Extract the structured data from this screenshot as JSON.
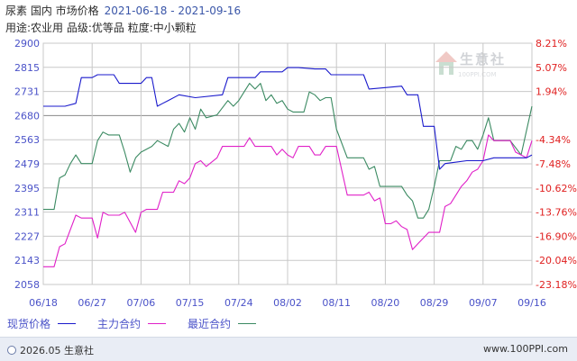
{
  "header": {
    "title": "尿素  国内  市场价格",
    "date_range": "2021-06-18 - 2021-09-16",
    "subtitle": "用途:农业用  品级:优等品  粒度:中小颗粒"
  },
  "watermark": {
    "text": "生意社",
    "url": "100PPI.COM"
  },
  "footer": {
    "copyright": "2026.05 生意社",
    "site": "www.100PPI.com"
  },
  "colors": {
    "spot": "#1a1acc",
    "main_contract": "#e020c8",
    "latest_contract": "#3b8a62",
    "axis_text": "#4a52c8",
    "right_axis_text": "#e02020",
    "grid": "#c8c8c8",
    "baseline": "#888888"
  },
  "chart_data": {
    "type": "line",
    "title": "尿素  国内  市场价格",
    "x_ticks": [
      "06/18",
      "06/27",
      "07/06",
      "07/15",
      "07/24",
      "08/02",
      "08/11",
      "08/20",
      "08/29",
      "09/07",
      "09/16"
    ],
    "x_range": [
      "2021-06-18",
      "2021-09-16"
    ],
    "y_left": {
      "ticks": [
        2900,
        2815,
        2731,
        2680,
        2563,
        2479,
        2395,
        2311,
        2227,
        2143,
        2058
      ],
      "range": [
        2058,
        2900
      ]
    },
    "y_right": {
      "ticks": [
        "8.21%",
        "5.07%",
        "1.94%",
        "",
        "-4.34%",
        "-7.48%",
        "-10.62%",
        "-13.76%",
        "-16.90%",
        "-20.04%",
        "-23.18%"
      ]
    },
    "reference_value": 2680,
    "grid": true,
    "legend_placement": "bottom-left",
    "series": [
      {
        "name": "现货价格",
        "color": "#1a1acc",
        "points": [
          [
            "2021-06-18",
            2680
          ],
          [
            "2021-06-22",
            2680
          ],
          [
            "2021-06-24",
            2690
          ],
          [
            "2021-06-25",
            2780
          ],
          [
            "2021-06-27",
            2780
          ],
          [
            "2021-06-28",
            2790
          ],
          [
            "2021-07-01",
            2790
          ],
          [
            "2021-07-02",
            2760
          ],
          [
            "2021-07-06",
            2760
          ],
          [
            "2021-07-07",
            2780
          ],
          [
            "2021-07-08",
            2780
          ],
          [
            "2021-07-09",
            2680
          ],
          [
            "2021-07-10",
            2690
          ],
          [
            "2021-07-11",
            2700
          ],
          [
            "2021-07-13",
            2720
          ],
          [
            "2021-07-16",
            2710
          ],
          [
            "2021-07-21",
            2720
          ],
          [
            "2021-07-22",
            2780
          ],
          [
            "2021-07-27",
            2780
          ],
          [
            "2021-07-28",
            2800
          ],
          [
            "2021-08-01",
            2800
          ],
          [
            "2021-08-02",
            2815
          ],
          [
            "2021-08-04",
            2815
          ],
          [
            "2021-08-07",
            2810
          ],
          [
            "2021-08-09",
            2810
          ],
          [
            "2021-08-10",
            2790
          ],
          [
            "2021-08-16",
            2790
          ],
          [
            "2021-08-17",
            2740
          ],
          [
            "2021-08-23",
            2750
          ],
          [
            "2021-08-24",
            2720
          ],
          [
            "2021-08-26",
            2720
          ],
          [
            "2021-08-27",
            2610
          ],
          [
            "2021-08-29",
            2610
          ],
          [
            "2021-08-30",
            2460
          ],
          [
            "2021-08-31",
            2480
          ],
          [
            "2021-09-04",
            2490
          ],
          [
            "2021-09-07",
            2490
          ],
          [
            "2021-09-09",
            2500
          ],
          [
            "2021-09-14",
            2500
          ],
          [
            "2021-09-15",
            2500
          ],
          [
            "2021-09-16",
            2510
          ]
        ]
      },
      {
        "name": "主力合约",
        "color": "#e020c8",
        "points": [
          [
            "2021-06-18",
            2120
          ],
          [
            "2021-06-20",
            2120
          ],
          [
            "2021-06-21",
            2190
          ],
          [
            "2021-06-22",
            2200
          ],
          [
            "2021-06-24",
            2300
          ],
          [
            "2021-06-25",
            2290
          ],
          [
            "2021-06-27",
            2290
          ],
          [
            "2021-06-28",
            2220
          ],
          [
            "2021-06-29",
            2310
          ],
          [
            "2021-06-30",
            2300
          ],
          [
            "2021-07-02",
            2300
          ],
          [
            "2021-07-03",
            2310
          ],
          [
            "2021-07-05",
            2240
          ],
          [
            "2021-07-06",
            2310
          ],
          [
            "2021-07-07",
            2320
          ],
          [
            "2021-07-09",
            2320
          ],
          [
            "2021-07-10",
            2380
          ],
          [
            "2021-07-12",
            2380
          ],
          [
            "2021-07-13",
            2420
          ],
          [
            "2021-07-14",
            2410
          ],
          [
            "2021-07-15",
            2430
          ],
          [
            "2021-07-16",
            2480
          ],
          [
            "2021-07-17",
            2490
          ],
          [
            "2021-07-18",
            2470
          ],
          [
            "2021-07-20",
            2500
          ],
          [
            "2021-07-21",
            2540
          ],
          [
            "2021-07-25",
            2540
          ],
          [
            "2021-07-26",
            2570
          ],
          [
            "2021-07-27",
            2540
          ],
          [
            "2021-07-30",
            2540
          ],
          [
            "2021-07-31",
            2510
          ],
          [
            "2021-08-01",
            2530
          ],
          [
            "2021-08-02",
            2510
          ],
          [
            "2021-08-03",
            2500
          ],
          [
            "2021-08-04",
            2540
          ],
          [
            "2021-08-06",
            2540
          ],
          [
            "2021-08-07",
            2510
          ],
          [
            "2021-08-08",
            2510
          ],
          [
            "2021-08-09",
            2540
          ],
          [
            "2021-08-11",
            2540
          ],
          [
            "2021-08-13",
            2370
          ],
          [
            "2021-08-16",
            2370
          ],
          [
            "2021-08-17",
            2380
          ],
          [
            "2021-08-18",
            2350
          ],
          [
            "2021-08-19",
            2360
          ],
          [
            "2021-08-20",
            2270
          ],
          [
            "2021-08-21",
            2270
          ],
          [
            "2021-08-22",
            2280
          ],
          [
            "2021-08-23",
            2260
          ],
          [
            "2021-08-24",
            2250
          ],
          [
            "2021-08-25",
            2180
          ],
          [
            "2021-08-26",
            2200
          ],
          [
            "2021-08-28",
            2240
          ],
          [
            "2021-08-30",
            2240
          ],
          [
            "2021-08-31",
            2330
          ],
          [
            "2021-09-01",
            2340
          ],
          [
            "2021-09-02",
            2370
          ],
          [
            "2021-09-03",
            2400
          ],
          [
            "2021-09-04",
            2420
          ],
          [
            "2021-09-05",
            2450
          ],
          [
            "2021-09-06",
            2460
          ],
          [
            "2021-09-07",
            2490
          ],
          [
            "2021-09-08",
            2580
          ],
          [
            "2021-09-09",
            2560
          ],
          [
            "2021-09-12",
            2560
          ],
          [
            "2021-09-13",
            2520
          ],
          [
            "2021-09-15",
            2500
          ],
          [
            "2021-09-16",
            2560
          ]
        ]
      },
      {
        "name": "最近合约",
        "color": "#3b8a62",
        "points": [
          [
            "2021-06-18",
            2320
          ],
          [
            "2021-06-20",
            2320
          ],
          [
            "2021-06-21",
            2430
          ],
          [
            "2021-06-22",
            2440
          ],
          [
            "2021-06-23",
            2480
          ],
          [
            "2021-06-24",
            2510
          ],
          [
            "2021-06-25",
            2480
          ],
          [
            "2021-06-27",
            2480
          ],
          [
            "2021-06-28",
            2560
          ],
          [
            "2021-06-29",
            2590
          ],
          [
            "2021-06-30",
            2580
          ],
          [
            "2021-07-02",
            2580
          ],
          [
            "2021-07-03",
            2520
          ],
          [
            "2021-07-04",
            2450
          ],
          [
            "2021-07-05",
            2500
          ],
          [
            "2021-07-06",
            2520
          ],
          [
            "2021-07-08",
            2540
          ],
          [
            "2021-07-09",
            2560
          ],
          [
            "2021-07-11",
            2540
          ],
          [
            "2021-07-12",
            2600
          ],
          [
            "2021-07-13",
            2620
          ],
          [
            "2021-07-14",
            2590
          ],
          [
            "2021-07-15",
            2640
          ],
          [
            "2021-07-16",
            2600
          ],
          [
            "2021-07-17",
            2670
          ],
          [
            "2021-07-18",
            2640
          ],
          [
            "2021-07-20",
            2650
          ],
          [
            "2021-07-22",
            2700
          ],
          [
            "2021-07-23",
            2680
          ],
          [
            "2021-07-24",
            2700
          ],
          [
            "2021-07-25",
            2730
          ],
          [
            "2021-07-26",
            2760
          ],
          [
            "2021-07-27",
            2740
          ],
          [
            "2021-07-28",
            2760
          ],
          [
            "2021-07-29",
            2700
          ],
          [
            "2021-07-30",
            2720
          ],
          [
            "2021-07-31",
            2690
          ],
          [
            "2021-08-01",
            2700
          ],
          [
            "2021-08-02",
            2670
          ],
          [
            "2021-08-03",
            2660
          ],
          [
            "2021-08-05",
            2660
          ],
          [
            "2021-08-06",
            2730
          ],
          [
            "2021-08-07",
            2720
          ],
          [
            "2021-08-08",
            2700
          ],
          [
            "2021-08-09",
            2710
          ],
          [
            "2021-08-10",
            2710
          ],
          [
            "2021-08-11",
            2600
          ],
          [
            "2021-08-13",
            2500
          ],
          [
            "2021-08-16",
            2500
          ],
          [
            "2021-08-17",
            2460
          ],
          [
            "2021-08-18",
            2470
          ],
          [
            "2021-08-19",
            2400
          ],
          [
            "2021-08-23",
            2400
          ],
          [
            "2021-08-24",
            2370
          ],
          [
            "2021-08-25",
            2350
          ],
          [
            "2021-08-26",
            2290
          ],
          [
            "2021-08-27",
            2290
          ],
          [
            "2021-08-28",
            2320
          ],
          [
            "2021-08-29",
            2400
          ],
          [
            "2021-08-30",
            2490
          ],
          [
            "2021-09-01",
            2490
          ],
          [
            "2021-09-02",
            2540
          ],
          [
            "2021-09-03",
            2530
          ],
          [
            "2021-09-04",
            2560
          ],
          [
            "2021-09-05",
            2560
          ],
          [
            "2021-09-06",
            2530
          ],
          [
            "2021-09-07",
            2580
          ],
          [
            "2021-09-08",
            2640
          ],
          [
            "2021-09-09",
            2560
          ],
          [
            "2021-09-12",
            2560
          ],
          [
            "2021-09-14",
            2510
          ],
          [
            "2021-09-16",
            2680
          ]
        ]
      }
    ]
  }
}
